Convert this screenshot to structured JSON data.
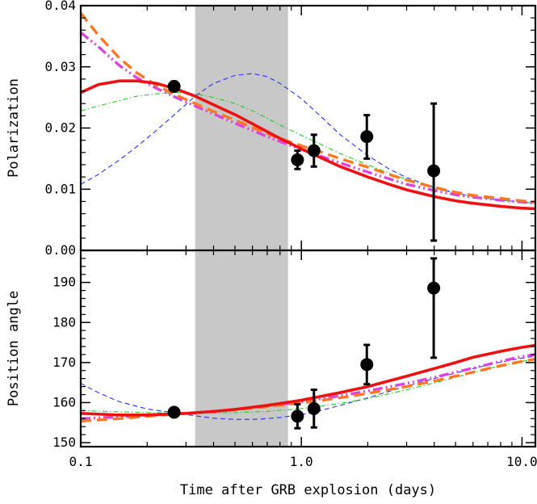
{
  "chart_data": [
    {
      "type": "line",
      "panel": "top",
      "xlabel": "",
      "ylabel": "Polarization",
      "xscale": "log",
      "xlim": [
        0.1,
        11.5
      ],
      "ylim": [
        0.0,
        0.04
      ],
      "y_ticks": [
        "0.00",
        "0.01",
        "0.02",
        "0.03",
        "0.04"
      ],
      "x_ticks": [],
      "shaded_band": {
        "x_from": 0.33,
        "x_to": 0.87,
        "color": "#c8c8c8"
      },
      "series": [
        {
          "style": "solid-thick",
          "color": "#ee1111",
          "points": [
            [
              0.1,
              0.0258
            ],
            [
              0.12,
              0.0271
            ],
            [
              0.15,
              0.0277
            ],
            [
              0.18,
              0.0277
            ],
            [
              0.22,
              0.0273
            ],
            [
              0.27,
              0.0264
            ],
            [
              0.33,
              0.0252
            ],
            [
              0.4,
              0.0238
            ],
            [
              0.5,
              0.0222
            ],
            [
              0.6,
              0.0207
            ],
            [
              0.7,
              0.0194
            ],
            [
              0.8,
              0.0183
            ],
            [
              1.0,
              0.0166
            ],
            [
              1.2,
              0.0153
            ],
            [
              1.5,
              0.0137
            ],
            [
              2.0,
              0.012
            ],
            [
              2.5,
              0.0108
            ],
            [
              3.0,
              0.0099
            ],
            [
              4.0,
              0.0088
            ],
            [
              5.0,
              0.0081
            ],
            [
              6.0,
              0.0077
            ],
            [
              8.0,
              0.0072
            ],
            [
              10.0,
              0.0069
            ],
            [
              11.5,
              0.0068
            ]
          ]
        },
        {
          "style": "dashed-thick",
          "color": "#ff7722",
          "points": [
            [
              0.1,
              0.0388
            ],
            [
              0.12,
              0.0352
            ],
            [
              0.15,
              0.0314
            ],
            [
              0.18,
              0.029
            ],
            [
              0.22,
              0.027
            ],
            [
              0.27,
              0.0254
            ],
            [
              0.33,
              0.024
            ],
            [
              0.4,
              0.0227
            ],
            [
              0.5,
              0.0213
            ],
            [
              0.6,
              0.0201
            ],
            [
              0.7,
              0.0191
            ],
            [
              0.8,
              0.0183
            ],
            [
              1.0,
              0.0171
            ],
            [
              1.2,
              0.0162
            ],
            [
              1.5,
              0.015
            ],
            [
              2.0,
              0.0136
            ],
            [
              2.5,
              0.0124
            ],
            [
              3.0,
              0.0115
            ],
            [
              4.0,
              0.0103
            ],
            [
              5.0,
              0.0095
            ],
            [
              6.0,
              0.009
            ],
            [
              8.0,
              0.0085
            ],
            [
              10.0,
              0.0081
            ],
            [
              11.5,
              0.0079
            ]
          ]
        },
        {
          "style": "dash-dot-dot-thick",
          "color": "#dd44dd",
          "points": [
            [
              0.1,
              0.0356
            ],
            [
              0.12,
              0.0333
            ],
            [
              0.15,
              0.0302
            ],
            [
              0.18,
              0.0282
            ],
            [
              0.22,
              0.0265
            ],
            [
              0.27,
              0.025
            ],
            [
              0.33,
              0.0236
            ],
            [
              0.4,
              0.0223
            ],
            [
              0.5,
              0.0208
            ],
            [
              0.6,
              0.0196
            ],
            [
              0.7,
              0.0186
            ],
            [
              0.8,
              0.0178
            ],
            [
              1.0,
              0.0165
            ],
            [
              1.2,
              0.0155
            ],
            [
              1.5,
              0.0143
            ],
            [
              2.0,
              0.0128
            ],
            [
              2.5,
              0.0117
            ],
            [
              3.0,
              0.0108
            ],
            [
              4.0,
              0.0098
            ],
            [
              5.0,
              0.0091
            ],
            [
              6.0,
              0.0087
            ],
            [
              8.0,
              0.0082
            ],
            [
              10.0,
              0.0079
            ],
            [
              11.5,
              0.0077
            ]
          ]
        },
        {
          "style": "dash-dot-thin",
          "color": "#22cc22",
          "points": [
            [
              0.1,
              0.0228
            ],
            [
              0.12,
              0.0236
            ],
            [
              0.15,
              0.0245
            ],
            [
              0.18,
              0.0252
            ],
            [
              0.22,
              0.0256
            ],
            [
              0.27,
              0.0258
            ],
            [
              0.33,
              0.0256
            ],
            [
              0.4,
              0.025
            ],
            [
              0.5,
              0.024
            ],
            [
              0.6,
              0.0228
            ],
            [
              0.7,
              0.0216
            ],
            [
              0.8,
              0.0205
            ],
            [
              1.0,
              0.0188
            ],
            [
              1.2,
              0.0175
            ],
            [
              1.5,
              0.0158
            ],
            [
              2.0,
              0.014
            ],
            [
              2.5,
              0.0126
            ],
            [
              3.0,
              0.0116
            ],
            [
              4.0,
              0.0102
            ],
            [
              5.0,
              0.0093
            ],
            [
              6.0,
              0.0088
            ],
            [
              8.0,
              0.0082
            ],
            [
              10.0,
              0.0079
            ],
            [
              11.5,
              0.0077
            ]
          ]
        },
        {
          "style": "dashed-thin",
          "color": "#2233ee",
          "points": [
            [
              0.1,
              0.0108
            ],
            [
              0.12,
              0.0124
            ],
            [
              0.15,
              0.0148
            ],
            [
              0.18,
              0.017
            ],
            [
              0.22,
              0.0196
            ],
            [
              0.27,
              0.0224
            ],
            [
              0.33,
              0.0252
            ],
            [
              0.4,
              0.0273
            ],
            [
              0.5,
              0.0286
            ],
            [
              0.6,
              0.0289
            ],
            [
              0.7,
              0.0284
            ],
            [
              0.8,
              0.0273
            ],
            [
              1.0,
              0.0248
            ],
            [
              1.2,
              0.0222
            ],
            [
              1.5,
              0.0189
            ],
            [
              2.0,
              0.0155
            ],
            [
              2.5,
              0.0133
            ],
            [
              3.0,
              0.0119
            ],
            [
              4.0,
              0.0103
            ],
            [
              5.0,
              0.0094
            ],
            [
              6.0,
              0.0088
            ],
            [
              8.0,
              0.0082
            ],
            [
              10.0,
              0.0079
            ],
            [
              11.5,
              0.0077
            ]
          ]
        }
      ],
      "points": [
        {
          "x": 0.265,
          "y": 0.0268,
          "ylo": 0.026,
          "yhi": 0.0276
        },
        {
          "x": 0.96,
          "y": 0.0148,
          "ylo": 0.0133,
          "yhi": 0.0163
        },
        {
          "x": 1.14,
          "y": 0.0163,
          "ylo": 0.0137,
          "yhi": 0.0189
        },
        {
          "x": 1.98,
          "y": 0.0186,
          "ylo": 0.015,
          "yhi": 0.0221
        },
        {
          "x": 3.98,
          "y": 0.013,
          "ylo": 0.0016,
          "yhi": 0.024
        }
      ]
    },
    {
      "type": "line",
      "panel": "bottom",
      "xlabel": "Time after GRB explosion (days)",
      "ylabel": "Position angle",
      "xscale": "log",
      "xlim": [
        0.1,
        11.5
      ],
      "ylim": [
        149,
        198
      ],
      "y_ticks": [
        "150",
        "160",
        "170",
        "180",
        "190"
      ],
      "x_ticks": [
        {
          "value": 0.1,
          "label": "0.1"
        },
        {
          "value": 1.0,
          "label": "1.0"
        },
        {
          "value": 10.0,
          "label": "10.0"
        }
      ],
      "shaded_band": {
        "x_from": 0.33,
        "x_to": 0.87,
        "color": "#c8c8c8"
      },
      "series": [
        {
          "style": "solid-thick",
          "color": "#ee1111",
          "points": [
            [
              0.1,
              157.3
            ],
            [
              0.15,
              156.9
            ],
            [
              0.2,
              156.9
            ],
            [
              0.3,
              157.3
            ],
            [
              0.4,
              157.8
            ],
            [
              0.5,
              158.3
            ],
            [
              0.7,
              159.3
            ],
            [
              1.0,
              160.6
            ],
            [
              1.5,
              162.5
            ],
            [
              2.0,
              164.0
            ],
            [
              3.0,
              166.6
            ],
            [
              4.0,
              168.5
            ],
            [
              5.0,
              170.0
            ],
            [
              6.0,
              171.3
            ],
            [
              8.0,
              172.8
            ],
            [
              10.0,
              173.8
            ],
            [
              11.5,
              174.3
            ]
          ]
        },
        {
          "style": "dashed-thick",
          "color": "#ff7722",
          "points": [
            [
              0.1,
              155.4
            ],
            [
              0.15,
              156.0
            ],
            [
              0.2,
              156.6
            ],
            [
              0.3,
              157.3
            ],
            [
              0.4,
              157.8
            ],
            [
              0.5,
              158.2
            ],
            [
              0.7,
              159.0
            ],
            [
              1.0,
              159.9
            ],
            [
              1.5,
              161.2
            ],
            [
              2.0,
              162.3
            ],
            [
              3.0,
              164.0
            ],
            [
              4.0,
              165.4
            ],
            [
              5.0,
              166.6
            ],
            [
              6.0,
              167.6
            ],
            [
              8.0,
              169.2
            ],
            [
              10.0,
              170.3
            ],
            [
              11.5,
              170.9
            ]
          ]
        },
        {
          "style": "dash-dot-dot-thick",
          "color": "#dd44dd",
          "points": [
            [
              0.1,
              156.0
            ],
            [
              0.15,
              156.4
            ],
            [
              0.2,
              156.8
            ],
            [
              0.3,
              157.3
            ],
            [
              0.4,
              157.8
            ],
            [
              0.5,
              158.3
            ],
            [
              0.7,
              159.2
            ],
            [
              1.0,
              160.2
            ],
            [
              1.5,
              161.7
            ],
            [
              2.0,
              162.9
            ],
            [
              3.0,
              164.8
            ],
            [
              4.0,
              166.3
            ],
            [
              5.0,
              167.6
            ],
            [
              6.0,
              168.6
            ],
            [
              8.0,
              170.3
            ],
            [
              10.0,
              171.5
            ],
            [
              11.5,
              172.0
            ]
          ]
        },
        {
          "style": "dash-dot-thin",
          "color": "#22cc22",
          "points": [
            [
              0.1,
              158.0
            ],
            [
              0.15,
              157.7
            ],
            [
              0.2,
              157.5
            ],
            [
              0.3,
              157.4
            ],
            [
              0.4,
              157.4
            ],
            [
              0.5,
              157.5
            ],
            [
              0.7,
              157.8
            ],
            [
              1.0,
              158.5
            ],
            [
              1.5,
              159.8
            ],
            [
              2.0,
              161.0
            ],
            [
              3.0,
              163.2
            ],
            [
              4.0,
              164.9
            ],
            [
              5.0,
              166.3
            ],
            [
              6.0,
              167.5
            ],
            [
              8.0,
              169.2
            ],
            [
              10.0,
              170.3
            ],
            [
              11.5,
              170.8
            ]
          ]
        },
        {
          "style": "dashed-thin",
          "color": "#2233ee",
          "points": [
            [
              0.1,
              164.8
            ],
            [
              0.12,
              162.5
            ],
            [
              0.15,
              160.2
            ],
            [
              0.2,
              158.4
            ],
            [
              0.27,
              157.4
            ],
            [
              0.33,
              156.7
            ],
            [
              0.4,
              156.1
            ],
            [
              0.5,
              155.8
            ],
            [
              0.6,
              155.8
            ],
            [
              0.7,
              156.0
            ],
            [
              0.8,
              156.3
            ],
            [
              1.0,
              157.0
            ],
            [
              1.2,
              157.9
            ],
            [
              1.5,
              159.3
            ],
            [
              2.0,
              161.2
            ],
            [
              2.5,
              162.8
            ],
            [
              3.0,
              164.1
            ],
            [
              4.0,
              166.0
            ],
            [
              5.0,
              167.4
            ],
            [
              6.0,
              168.5
            ],
            [
              8.0,
              170.1
            ],
            [
              10.0,
              171.1
            ],
            [
              11.5,
              171.6
            ]
          ]
        }
      ],
      "points": [
        {
          "x": 0.265,
          "y": 157.6,
          "ylo": 156.9,
          "yhi": 158.3
        },
        {
          "x": 0.96,
          "y": 156.6,
          "ylo": 153.6,
          "yhi": 159.6
        },
        {
          "x": 1.14,
          "y": 158.5,
          "ylo": 153.8,
          "yhi": 163.2
        },
        {
          "x": 1.98,
          "y": 169.5,
          "ylo": 164.6,
          "yhi": 174.4
        },
        {
          "x": 3.98,
          "y": 188.6,
          "ylo": 171.2,
          "yhi": 196.0
        }
      ]
    }
  ]
}
